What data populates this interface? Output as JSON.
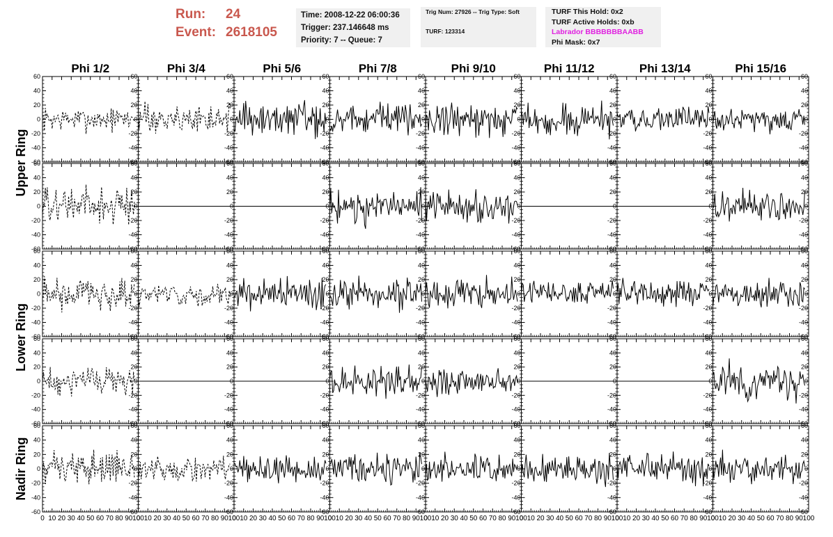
{
  "header": {
    "run_label": "Run:",
    "run_value": "24",
    "event_label": "Event:",
    "event_value": "2618105",
    "time": "Time: 2008-12-22 06:00:36",
    "trigger": "Trigger: 237.146648 ms",
    "priority": "Priority: 7 -- Queue: 7",
    "trig_num": "Trig Num: 27926 -- Trig Type: Soft",
    "turf": "TURF: 123314",
    "turf_hold": "TURF This Hold: 0x2",
    "turf_active": "TURF Active Holds: 0xb",
    "labrador": "Labrador BBBBBBBAABB",
    "phi_mask": "Phi Mask: 0x7"
  },
  "colors": {
    "run_text": "#c9584e",
    "labrador_text": "#e021e0",
    "info_bg": "#f0f0f0"
  },
  "chart_data": {
    "type": "line",
    "columns": [
      "Phi 1/2",
      "Phi 3/4",
      "Phi 5/6",
      "Phi 7/8",
      "Phi 9/10",
      "Phi 11/12",
      "Phi 13/14",
      "Phi 15/16"
    ],
    "ring_labels": [
      "Upper Ring",
      "Lower Ring",
      "Nadir Ring"
    ],
    "xlim": [
      0,
      100
    ],
    "ylim": [
      -60,
      60
    ],
    "x_ticks": [
      0,
      10,
      20,
      30,
      40,
      50,
      60,
      70,
      80,
      90,
      100
    ],
    "y_ticks": [
      -60,
      -40,
      -20,
      0,
      20,
      40,
      60
    ],
    "samples_per_trace": 96,
    "dashed_column": 0,
    "dashed_extra": [
      [
        0,
        1
      ],
      [
        2,
        1
      ],
      [
        4,
        1
      ]
    ],
    "traces": [
      [
        8,
        10,
        12,
        11,
        11,
        11,
        8,
        8
      ],
      [
        13,
        0,
        0,
        12,
        11,
        0,
        0,
        12
      ],
      [
        12,
        8,
        12,
        11,
        10,
        9,
        9,
        10
      ],
      [
        10,
        0,
        0,
        11,
        9,
        0,
        0,
        12
      ],
      [
        11,
        8,
        10,
        10,
        10,
        10,
        10,
        10
      ]
    ]
  }
}
